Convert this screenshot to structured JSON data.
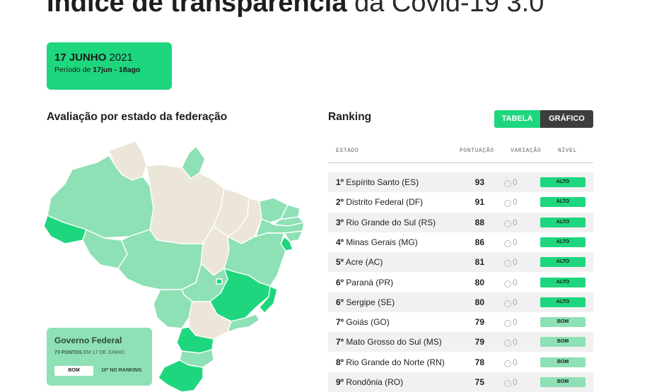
{
  "header": {
    "title_bold": "Índice de transparência",
    "title_light": "da Covid-19 3.0"
  },
  "date_box": {
    "date_bold": "17 JUNHO",
    "date_year": "2021",
    "period_prefix": "Período de",
    "period_value": "17jun - 18ago"
  },
  "map_section": {
    "heading": "Avaliação por estado da federação"
  },
  "gov_federal": {
    "title": "Governo Federal",
    "points": "73 PONTOS",
    "points_suffix": "EM 17 DE JUNHO",
    "badge": "BOM",
    "rank": "10º NO RANKING"
  },
  "ranking": {
    "heading": "Ranking",
    "toggle_table": "TABELA",
    "toggle_chart": "GRÁFICO",
    "columns": [
      "ESTADO",
      "PONTUAÇÃO",
      "VARIAÇÃO",
      "NÍVEL"
    ],
    "rows": [
      {
        "pos": "1º",
        "state": "Espírito Santo (ES)",
        "score": "93",
        "var": "0",
        "level": "ALTO"
      },
      {
        "pos": "2º",
        "state": "Distrito Federal (DF)",
        "score": "91",
        "var": "0",
        "level": "ALTO"
      },
      {
        "pos": "3º",
        "state": "Rio Grande do Sul (RS)",
        "score": "88",
        "var": "0",
        "level": "ALTO"
      },
      {
        "pos": "4º",
        "state": "Minas Gerais (MG)",
        "score": "86",
        "var": "0",
        "level": "ALTO"
      },
      {
        "pos": "5º",
        "state": "Acre (AC)",
        "score": "81",
        "var": "0",
        "level": "ALTO"
      },
      {
        "pos": "6º",
        "state": "Paraná (PR)",
        "score": "80",
        "var": "0",
        "level": "ALTO"
      },
      {
        "pos": "6º",
        "state": "Sergipe (SE)",
        "score": "80",
        "var": "0",
        "level": "ALTO"
      },
      {
        "pos": "7º",
        "state": "Goiás (GO)",
        "score": "79",
        "var": "0",
        "level": "BOM"
      },
      {
        "pos": "7º",
        "state": "Mato Grosso do Sul (MS)",
        "score": "79",
        "var": "0",
        "level": "BOM"
      },
      {
        "pos": "8º",
        "state": "Rio Grande do Norte (RN)",
        "score": "78",
        "var": "0",
        "level": "BOM"
      },
      {
        "pos": "9º",
        "state": "Rondônia (RO)",
        "score": "75",
        "var": "0",
        "level": "BOM"
      }
    ]
  },
  "colors": {
    "alto": "#1ed67e",
    "bom": "#8ee0b5",
    "neutral": "#ece6d9",
    "accent": "#1ed67e",
    "dark_toggle": "#3d3d3d"
  }
}
